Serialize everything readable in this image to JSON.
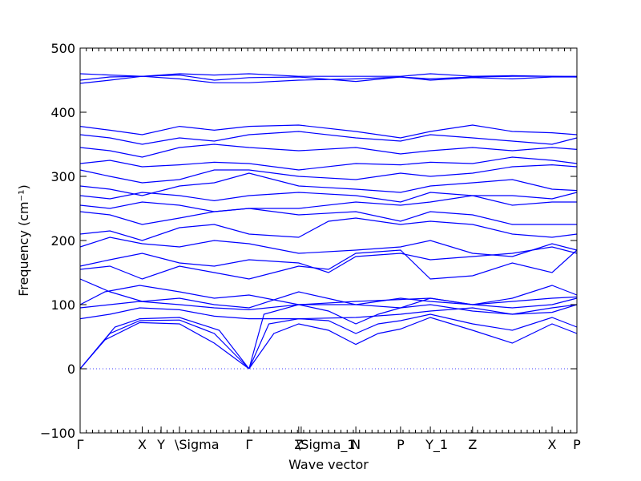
{
  "chart_data": {
    "type": "line",
    "title": "",
    "xlabel": "Wave vector",
    "ylabel": "Frequency (cm⁻¹)",
    "ylim": [
      -100,
      500
    ],
    "xlim": [
      0,
      1
    ],
    "yticks": [
      -100,
      0,
      100,
      200,
      300,
      400,
      500
    ],
    "xticks": [
      {
        "label": "Γ",
        "pos": 0.0
      },
      {
        "label": "X",
        "pos": 0.125
      },
      {
        "label": "Y",
        "pos": 0.163
      },
      {
        "label": "\\Sigma",
        "pos": 0.2
      },
      {
        "label": "Γ",
        "pos": 0.34
      },
      {
        "label": "Z",
        "pos": 0.44
      },
      {
        "label": "\\Sigma_1",
        "pos": 0.445
      },
      {
        "label": "N",
        "pos": 0.555
      },
      {
        "label": "P",
        "pos": 0.645
      },
      {
        "label": "Y_1",
        "pos": 0.705
      },
      {
        "label": "Z",
        "pos": 0.79
      },
      {
        "label": "X",
        "pos": 0.95
      },
      {
        "label": "P",
        "pos": 1.0
      }
    ],
    "zero_line": 0,
    "series_color": "#0000ff",
    "series": [
      {
        "x": [
          0,
          0.05,
          0.12,
          0.2,
          0.27,
          0.34
        ],
        "y": [
          0,
          45,
          72,
          70,
          40,
          0
        ]
      },
      {
        "x": [
          0,
          0.06,
          0.12,
          0.2,
          0.27,
          0.34
        ],
        "y": [
          0,
          55,
          75,
          76,
          55,
          0
        ]
      },
      {
        "x": [
          0,
          0.07,
          0.12,
          0.2,
          0.28,
          0.34
        ],
        "y": [
          0,
          65,
          78,
          80,
          60,
          0
        ]
      },
      {
        "x": [
          0.34,
          0.39,
          0.44,
          0.5,
          0.555,
          0.6,
          0.645,
          0.705,
          0.79,
          0.87,
          0.95,
          1.0
        ],
        "y": [
          0,
          55,
          70,
          60,
          38,
          55,
          62,
          80,
          60,
          40,
          70,
          55
        ]
      },
      {
        "x": [
          0.34,
          0.38,
          0.44,
          0.5,
          0.555,
          0.6,
          0.645,
          0.705,
          0.79,
          0.87,
          0.95,
          1.0
        ],
        "y": [
          0,
          70,
          78,
          75,
          55,
          70,
          75,
          85,
          70,
          60,
          80,
          65
        ]
      },
      {
        "x": [
          0.34,
          0.37,
          0.44,
          0.5,
          0.555,
          0.6,
          0.645,
          0.705,
          0.79,
          0.87,
          0.95,
          1.0
        ],
        "y": [
          0,
          85,
          100,
          90,
          70,
          85,
          95,
          100,
          90,
          85,
          95,
          100
        ]
      },
      {
        "x": [
          0,
          0.06,
          0.12,
          0.2,
          0.27,
          0.34,
          0.44,
          0.555,
          0.645,
          0.705,
          0.79,
          0.87,
          0.95,
          1.0
        ],
        "y": [
          78,
          85,
          95,
          92,
          82,
          78,
          78,
          80,
          85,
          90,
          95,
          85,
          88,
          100
        ]
      },
      {
        "x": [
          0,
          0.06,
          0.12,
          0.2,
          0.27,
          0.34,
          0.44,
          0.555,
          0.645,
          0.705,
          0.79,
          0.87,
          0.95,
          1.0
        ],
        "y": [
          95,
          100,
          105,
          100,
          95,
          92,
          100,
          105,
          108,
          110,
          100,
          105,
          110,
          112
        ]
      },
      {
        "x": [
          0,
          0.05,
          0.12,
          0.2,
          0.27,
          0.34,
          0.44,
          0.555,
          0.645,
          0.705,
          0.79,
          0.87,
          0.95,
          1.0
        ],
        "y": [
          100,
          120,
          130,
          120,
          110,
          115,
          100,
          100,
          110,
          105,
          100,
          110,
          130,
          115
        ]
      },
      {
        "x": [
          0,
          0.06,
          0.125,
          0.2,
          0.27,
          0.34,
          0.44,
          0.555,
          0.645,
          0.705,
          0.79,
          0.87,
          0.95,
          1.0
        ],
        "y": [
          140,
          120,
          105,
          110,
          100,
          95,
          120,
          100,
          95,
          110,
          100,
          95,
          100,
          110
        ]
      },
      {
        "x": [
          0,
          0.06,
          0.125,
          0.2,
          0.27,
          0.34,
          0.44,
          0.5,
          0.555,
          0.645,
          0.705,
          0.79,
          0.87,
          0.95,
          1.0
        ],
        "y": [
          155,
          160,
          140,
          160,
          150,
          140,
          160,
          155,
          180,
          185,
          140,
          145,
          165,
          150,
          185
        ]
      },
      {
        "x": [
          0,
          0.06,
          0.125,
          0.2,
          0.27,
          0.34,
          0.44,
          0.5,
          0.555,
          0.645,
          0.705,
          0.79,
          0.87,
          0.95,
          1.0
        ],
        "y": [
          160,
          170,
          180,
          165,
          160,
          170,
          165,
          150,
          175,
          180,
          170,
          175,
          180,
          190,
          180
        ]
      },
      {
        "x": [
          0,
          0.06,
          0.125,
          0.2,
          0.27,
          0.34,
          0.44,
          0.555,
          0.645,
          0.705,
          0.79,
          0.87,
          0.95,
          1.0
        ],
        "y": [
          190,
          205,
          195,
          190,
          200,
          195,
          180,
          185,
          190,
          200,
          180,
          175,
          195,
          185
        ]
      },
      {
        "x": [
          0,
          0.06,
          0.125,
          0.2,
          0.27,
          0.34,
          0.44,
          0.5,
          0.555,
          0.645,
          0.705,
          0.79,
          0.87,
          0.95,
          1.0
        ],
        "y": [
          210,
          215,
          200,
          220,
          225,
          210,
          205,
          230,
          235,
          225,
          230,
          225,
          210,
          205,
          210
        ]
      },
      {
        "x": [
          0,
          0.06,
          0.125,
          0.2,
          0.27,
          0.34,
          0.44,
          0.555,
          0.645,
          0.705,
          0.79,
          0.87,
          0.95,
          1.0
        ],
        "y": [
          245,
          240,
          225,
          235,
          245,
          250,
          240,
          245,
          230,
          245,
          240,
          225,
          225,
          225
        ]
      },
      {
        "x": [
          0,
          0.06,
          0.125,
          0.2,
          0.27,
          0.34,
          0.44,
          0.555,
          0.645,
          0.705,
          0.79,
          0.87,
          0.95,
          1.0
        ],
        "y": [
          255,
          250,
          260,
          255,
          245,
          250,
          250,
          260,
          255,
          260,
          270,
          255,
          260,
          260
        ]
      },
      {
        "x": [
          0,
          0.06,
          0.125,
          0.2,
          0.27,
          0.34,
          0.44,
          0.555,
          0.645,
          0.705,
          0.79,
          0.87,
          0.95,
          1.0
        ],
        "y": [
          270,
          265,
          275,
          270,
          262,
          270,
          275,
          270,
          260,
          275,
          270,
          270,
          265,
          275
        ]
      },
      {
        "x": [
          0,
          0.06,
          0.125,
          0.2,
          0.27,
          0.34,
          0.44,
          0.555,
          0.645,
          0.705,
          0.79,
          0.87,
          0.95,
          1.0
        ],
        "y": [
          285,
          280,
          270,
          285,
          290,
          305,
          285,
          280,
          275,
          285,
          290,
          295,
          280,
          278
        ]
      },
      {
        "x": [
          0,
          0.06,
          0.125,
          0.2,
          0.27,
          0.34,
          0.44,
          0.555,
          0.645,
          0.705,
          0.79,
          0.87,
          0.95,
          1.0
        ],
        "y": [
          310,
          300,
          290,
          295,
          310,
          310,
          300,
          295,
          305,
          300,
          305,
          315,
          318,
          315
        ]
      },
      {
        "x": [
          0,
          0.06,
          0.125,
          0.2,
          0.27,
          0.34,
          0.44,
          0.555,
          0.645,
          0.705,
          0.79,
          0.87,
          0.95,
          1.0
        ],
        "y": [
          320,
          325,
          315,
          318,
          322,
          320,
          310,
          320,
          318,
          322,
          320,
          330,
          325,
          320
        ]
      },
      {
        "x": [
          0,
          0.06,
          0.125,
          0.2,
          0.27,
          0.34,
          0.44,
          0.555,
          0.645,
          0.705,
          0.79,
          0.87,
          0.95,
          1.0
        ],
        "y": [
          345,
          340,
          330,
          345,
          350,
          345,
          340,
          345,
          335,
          340,
          345,
          340,
          345,
          342
        ]
      },
      {
        "x": [
          0,
          0.06,
          0.125,
          0.2,
          0.27,
          0.34,
          0.44,
          0.555,
          0.645,
          0.705,
          0.79,
          0.87,
          0.95,
          1.0
        ],
        "y": [
          365,
          360,
          350,
          360,
          355,
          365,
          370,
          360,
          355,
          365,
          360,
          355,
          350,
          360
        ]
      },
      {
        "x": [
          0,
          0.06,
          0.125,
          0.2,
          0.27,
          0.34,
          0.44,
          0.555,
          0.645,
          0.705,
          0.79,
          0.87,
          0.95,
          1.0
        ],
        "y": [
          378,
          372,
          365,
          378,
          372,
          378,
          380,
          370,
          360,
          370,
          380,
          370,
          368,
          365
        ]
      },
      {
        "x": [
          0,
          0.06,
          0.125,
          0.2,
          0.27,
          0.34,
          0.44,
          0.555,
          0.645,
          0.705,
          0.79,
          0.87,
          0.95,
          1.0
        ],
        "y": [
          445,
          450,
          456,
          452,
          446,
          446,
          450,
          452,
          455,
          452,
          455,
          456,
          456,
          456
        ]
      },
      {
        "x": [
          0,
          0.06,
          0.125,
          0.2,
          0.27,
          0.34,
          0.44,
          0.555,
          0.645,
          0.705,
          0.79,
          0.87,
          0.95,
          1.0
        ],
        "y": [
          450,
          455,
          456,
          458,
          450,
          454,
          455,
          448,
          455,
          450,
          454,
          452,
          455,
          455
        ]
      },
      {
        "x": [
          0,
          0.06,
          0.125,
          0.2,
          0.27,
          0.34,
          0.44,
          0.555,
          0.645,
          0.705,
          0.79,
          0.87,
          0.95,
          1.0
        ],
        "y": [
          460,
          458,
          456,
          460,
          458,
          460,
          456,
          456,
          456,
          460,
          456,
          457,
          456,
          455
        ]
      }
    ]
  }
}
